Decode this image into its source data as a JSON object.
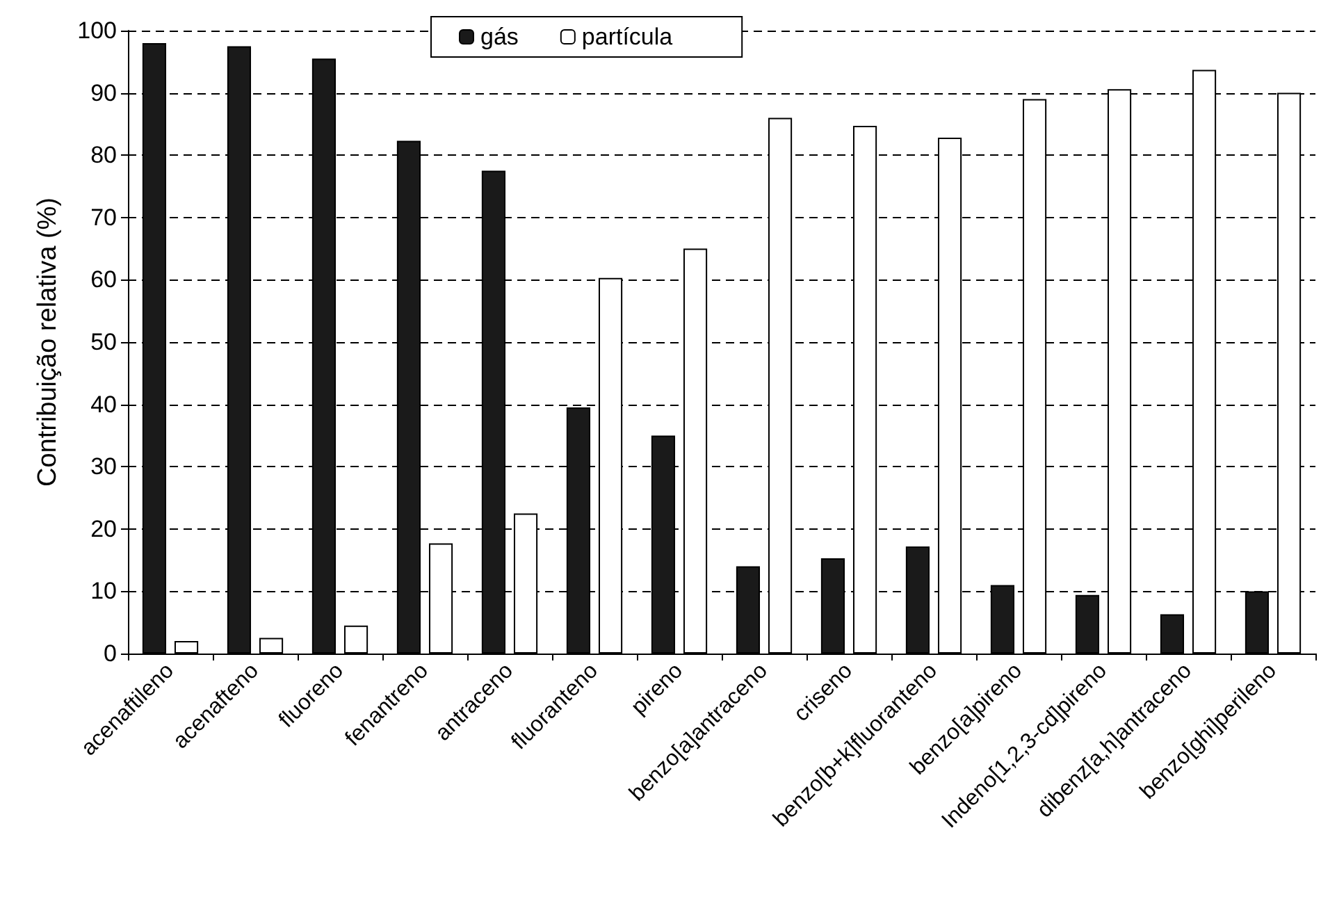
{
  "chart_data": {
    "type": "bar",
    "ylabel": "Contribuição relativa (%)",
    "categories": [
      "acenaftileno",
      "acenafteno",
      "fluoreno",
      "fenantreno",
      "antraceno",
      "fluoranteno",
      "pireno",
      "benzo[a]antraceno",
      "criseno",
      "benzo[b+k]fluoranteno",
      "benzo[a]pireno",
      "Indeno[1,2,3-cd]pireno",
      "dibenz[a,h]antraceno",
      "benzo[ghi]perileno"
    ],
    "series": [
      {
        "name": "gás",
        "color": "#1a1a1a",
        "values": [
          98,
          97.5,
          95.5,
          82.3,
          77.5,
          39.5,
          35,
          14,
          15.3,
          17.2,
          11,
          9.4,
          6.3,
          10
        ]
      },
      {
        "name": "partícula",
        "color": "#ffffff",
        "values": [
          2,
          2.5,
          4.5,
          17.7,
          22.5,
          60.3,
          65,
          86,
          84.7,
          82.8,
          89,
          90.6,
          93.7,
          90
        ]
      }
    ],
    "ylim": [
      0,
      100
    ],
    "yticks": [
      0,
      10,
      20,
      30,
      40,
      50,
      60,
      70,
      80,
      90,
      100
    ],
    "grid": "y",
    "legend": "top"
  }
}
